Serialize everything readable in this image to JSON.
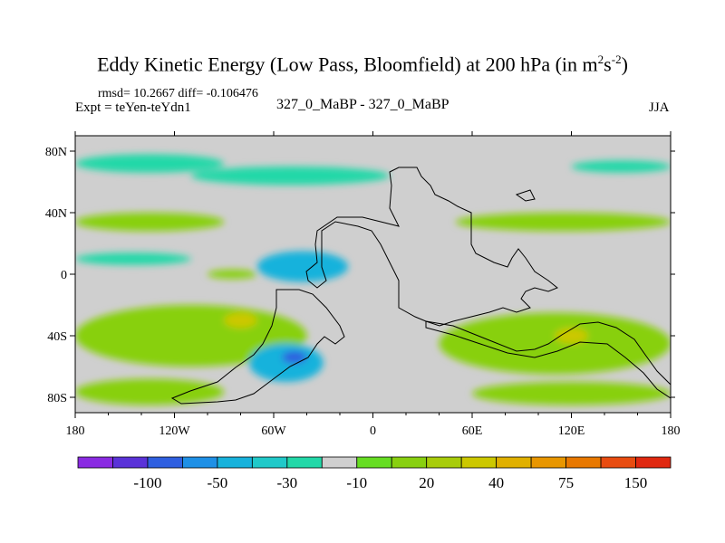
{
  "header": {
    "title_main": "Eddy Kinetic Energy (Low Pass, Bloomfield) at 200 hPa (in m",
    "title_sup1": "2",
    "title_mid": "s",
    "title_sup2": "-2",
    "title_end": ")",
    "stats": "rmsd= 10.2667 diff= -0.106476",
    "expt": "Expt = teYen-teYdn1",
    "center_label": "327_0_MaBP - 327_0_MaBP",
    "season": "JJA"
  },
  "chart_data": {
    "type": "heatmap",
    "title": "Eddy Kinetic Energy (Low Pass, Bloomfield) at 200 hPa (in m2s-2)",
    "x_ticks": [
      {
        "value": -180,
        "label": "180"
      },
      {
        "value": -120,
        "label": "120W"
      },
      {
        "value": -60,
        "label": "60W"
      },
      {
        "value": 0,
        "label": "0"
      },
      {
        "value": 60,
        "label": "60E"
      },
      {
        "value": 120,
        "label": "120E"
      },
      {
        "value": 180,
        "label": "180"
      }
    ],
    "y_ticks": [
      {
        "value": 80,
        "label": "80N"
      },
      {
        "value": 40,
        "label": "40N"
      },
      {
        "value": 0,
        "label": "0"
      },
      {
        "value": -40,
        "label": "40S"
      },
      {
        "value": -80,
        "label": "80S"
      }
    ],
    "xlim": [
      -180,
      180
    ],
    "ylim": [
      -90,
      90
    ],
    "colorbar": {
      "colors": [
        "#8a2be2",
        "#5a32d8",
        "#2f5fe0",
        "#1e90e6",
        "#17b2dc",
        "#20c9c9",
        "#22d8a8",
        "#cfcfcf",
        "#66dd22",
        "#88d010",
        "#a8cc0a",
        "#ccc800",
        "#e0b000",
        "#e89600",
        "#e87800",
        "#e84c10",
        "#e02810"
      ],
      "labels": [
        {
          "index": 1,
          "label": "-100"
        },
        {
          "index": 3,
          "label": "-50"
        },
        {
          "index": 5,
          "label": "-30"
        },
        {
          "index": 7,
          "label": "-10"
        },
        {
          "index": 9,
          "label": "20"
        },
        {
          "index": 11,
          "label": "40"
        },
        {
          "index": 13,
          "label": "75"
        },
        {
          "index": 15,
          "label": "150"
        }
      ]
    },
    "regions": [
      {
        "name": "nh-high-lat-band-west",
        "level": -10,
        "lon": [
          -180,
          -90
        ],
        "lat": [
          66,
          78
        ]
      },
      {
        "name": "nh-high-lat-band-center",
        "level": -10,
        "lon": [
          -110,
          10
        ],
        "lat": [
          58,
          70
        ]
      },
      {
        "name": "nh-mid-lat-band-west",
        "level": 20,
        "lon": [
          -180,
          -90
        ],
        "lat": [
          28,
          40
        ]
      },
      {
        "name": "nh-mid-lat-band-east",
        "level": 20,
        "lon": [
          50,
          180
        ],
        "lat": [
          28,
          40
        ]
      },
      {
        "name": "nh-high-lat-east",
        "level": -10,
        "lon": [
          120,
          180
        ],
        "lat": [
          66,
          74
        ]
      },
      {
        "name": "equatorial-west",
        "level": -10,
        "lon": [
          -180,
          -110
        ],
        "lat": [
          6,
          14
        ]
      },
      {
        "name": "equatorial-jet-core",
        "level": -50,
        "lon": [
          -60,
          -45
        ],
        "lat": [
          0,
          8
        ]
      },
      {
        "name": "equatorial-jet",
        "level": -30,
        "lon": [
          -70,
          -15
        ],
        "lat": [
          -5,
          15
        ]
      },
      {
        "name": "equatorial-green",
        "level": 20,
        "lon": [
          -100,
          -70
        ],
        "lat": [
          -3,
          3
        ]
      },
      {
        "name": "sh-mid-lat-band-west",
        "level": 20,
        "lon": [
          -180,
          -40
        ],
        "lat": [
          -60,
          -20
        ]
      },
      {
        "name": "sh-mid-lat-max-west",
        "level": 40,
        "lon": [
          -90,
          -70
        ],
        "lat": [
          -35,
          -25
        ]
      },
      {
        "name": "sh-mid-lat-band-east",
        "level": 20,
        "lon": [
          40,
          180
        ],
        "lat": [
          -65,
          -25
        ]
      },
      {
        "name": "sh-mid-lat-max-east",
        "level": 40,
        "lon": [
          110,
          130
        ],
        "lat": [
          -45,
          -35
        ]
      },
      {
        "name": "sh-jet-negative",
        "level": -30,
        "lon": [
          -75,
          -30
        ],
        "lat": [
          -70,
          -45
        ]
      },
      {
        "name": "sh-jet-negative-core",
        "level": -50,
        "lon": [
          -55,
          -40
        ],
        "lat": [
          -58,
          -50
        ]
      },
      {
        "name": "sh-polar-band",
        "level": 20,
        "lon": [
          -180,
          -90
        ],
        "lat": [
          -85,
          -68
        ]
      },
      {
        "name": "sh-polar-band-east",
        "level": 20,
        "lon": [
          60,
          180
        ],
        "lat": [
          -85,
          -70
        ]
      }
    ]
  }
}
